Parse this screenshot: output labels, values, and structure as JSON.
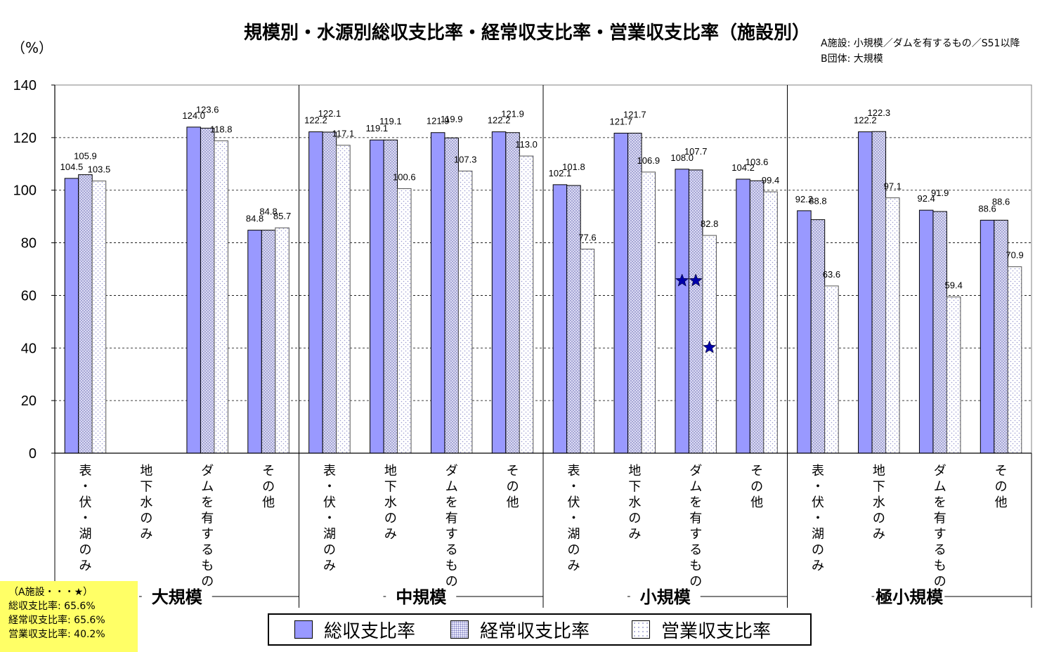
{
  "chart_data": {
    "type": "bar",
    "title": "規模別・水源別総収支比率・経常収支比率・営業収支比率（施設別）",
    "y_unit": "（%）",
    "ylim": [
      0,
      140
    ],
    "y_ticks": [
      "0",
      "20",
      "40",
      "60",
      "80",
      "100",
      "120",
      "140"
    ],
    "grid": "horizontal dashed",
    "legend_position": "bottom",
    "note_lines": [
      "A施設: 小規模／ダムを有するもの／S51以降",
      "B団体: 大規模"
    ],
    "groups": [
      "大規模",
      "中規模",
      "小規模",
      "極小規模"
    ],
    "categories": [
      "表・伏・湖のみ",
      "地下水のみ",
      "ダムを有するもの",
      "その他",
      "表・伏・湖のみ",
      "地下水のみ",
      "ダムを有するもの",
      "その他",
      "表・伏・湖のみ",
      "地下水のみ",
      "ダムを有するもの",
      "その他",
      "表・伏・湖のみ",
      "地下水のみ",
      "ダムを有するもの",
      "その他"
    ],
    "series": [
      {
        "name": "総収支比率",
        "color": "#9999ff",
        "values": [
          104.5,
          null,
          124.0,
          84.8,
          122.2,
          119.1,
          121.9,
          122.2,
          102.1,
          121.7,
          108.0,
          104.2,
          92.2,
          122.2,
          92.4,
          88.6
        ],
        "labels": [
          "104.5",
          "",
          "124.0",
          "84.8",
          "122.2",
          "119.1",
          "121.9",
          "122.2",
          "102.1",
          "121.7",
          "108.0",
          "104.2",
          "92.2",
          "122.2",
          "92.4",
          "88.6"
        ]
      },
      {
        "name": "経常収支比率",
        "color": "#e9e9fb",
        "values": [
          105.9,
          null,
          123.6,
          84.8,
          122.1,
          119.1,
          119.9,
          121.9,
          101.8,
          121.7,
          107.7,
          103.6,
          88.8,
          122.3,
          91.9,
          88.6
        ],
        "labels": [
          "105.9",
          "",
          "123.6",
          "84.8",
          "122.1",
          "119.1",
          "119.9",
          "121.9",
          "101.8",
          "121.7",
          "107.7",
          "103.6",
          "88.8",
          "122.3",
          "91.9",
          "88.6"
        ]
      },
      {
        "name": "営業収支比率",
        "color": "#ffffff",
        "values": [
          103.5,
          null,
          118.8,
          85.7,
          117.1,
          100.6,
          107.3,
          113.0,
          77.6,
          106.9,
          82.8,
          99.4,
          63.6,
          97.1,
          59.4,
          70.9
        ],
        "labels": [
          "103.5",
          "",
          "118.8",
          "85.7",
          "117.1",
          "100.6",
          "107.3",
          "113.0",
          "77.6",
          "106.9",
          "82.8",
          "99.4",
          "63.6",
          "97.1",
          "59.4",
          "70.9"
        ]
      }
    ],
    "star_markers": [
      {
        "category_index": 10,
        "series_index": 0,
        "value": 65.6
      },
      {
        "category_index": 10,
        "series_index": 1,
        "value": 65.6
      },
      {
        "category_index": 10,
        "series_index": 2,
        "value": 40.2
      }
    ]
  },
  "annotation": {
    "header": "（A施設・・・★）",
    "lines": [
      "総収支比率: 65.6%",
      "経常収支比率: 65.6%",
      "営業収支比率: 40.2%"
    ]
  }
}
